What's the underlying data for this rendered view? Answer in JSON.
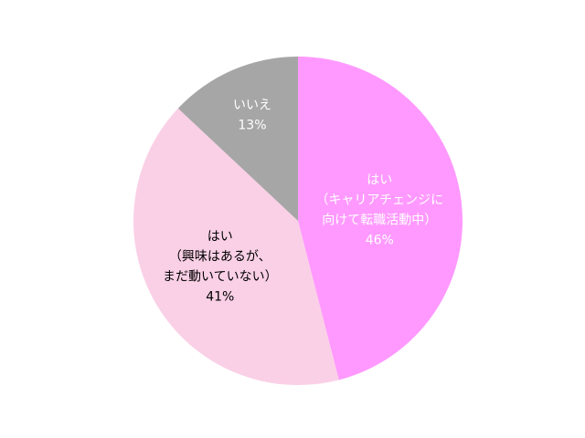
{
  "chart_data": {
    "type": "pie",
    "categories": [
      [
        "はい",
        "（キャリアチェンジに",
        "向けて転職活動中）"
      ],
      [
        "はい",
        "（興味はあるが、",
        "まだ動いていない）"
      ],
      [
        "いいえ"
      ]
    ],
    "values": [
      46,
      41,
      13
    ],
    "value_labels": [
      "46%",
      "41%",
      "13%"
    ],
    "colors": [
      "#ff99ff",
      "#fad0e6",
      "#a6a6a6"
    ],
    "label_colors": [
      "#ffffff",
      "#000000",
      "#ffffff"
    ]
  }
}
